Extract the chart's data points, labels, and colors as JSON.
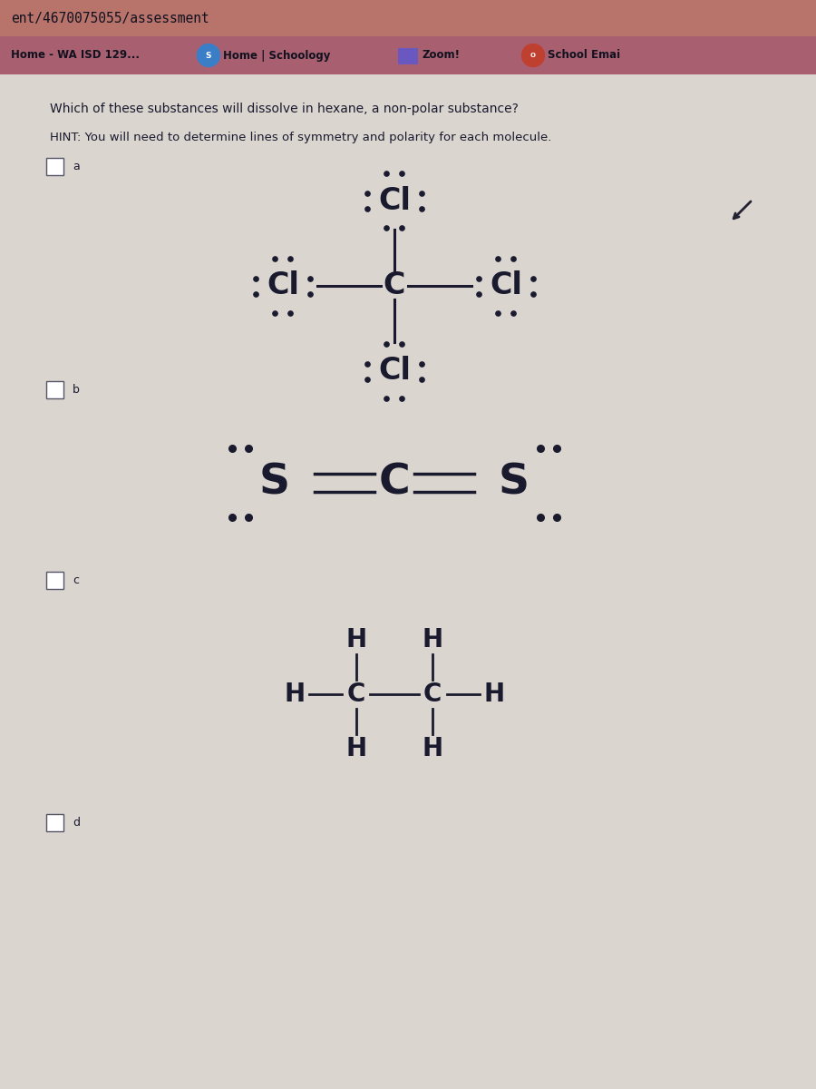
{
  "title_bar_text": "ent/4670075055/assessment",
  "question": "Which of these substances will dissolve in hexane, a non-polar substance?",
  "hint": "HINT: You will need to determine lines of symmetry and polarity for each molecule.",
  "option_a": "a",
  "option_b": "b",
  "option_c": "c",
  "option_d": "d",
  "bg_color": "#d4cec9",
  "title_bar_color": "#b8736a",
  "nav_bar_color": "#a86070",
  "content_bg": "#dbd5d0",
  "text_color": "#1a1a2e",
  "molecule_color": "#1a1a2e",
  "nav_home": "Home - WA ISD 129...",
  "nav_schoology": "Home | Schoology",
  "nav_zoom": "Zoom!",
  "nav_email": "School Emai"
}
